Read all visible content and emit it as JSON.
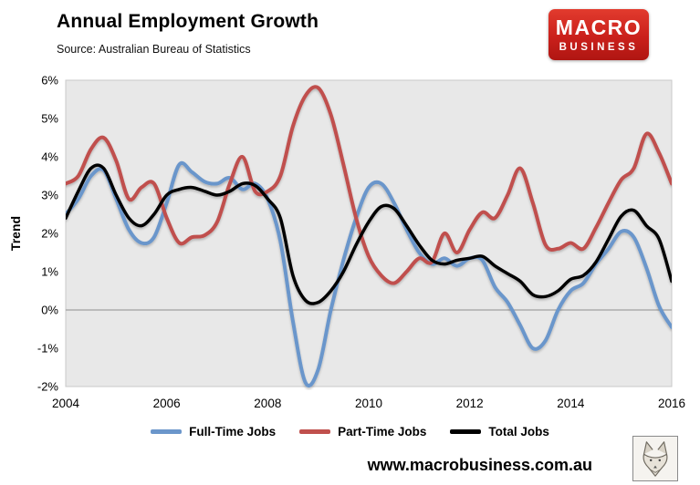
{
  "header": {
    "title": "Annual Employment Growth",
    "subtitle": "Source: Australian Bureau of Statistics",
    "logo": {
      "line1": "MACRO",
      "line2": "BUSINESS",
      "bg_color": "#C8201D",
      "text_color": "#FFFFFF"
    }
  },
  "chart_data": {
    "type": "line",
    "title": "Annual Employment Growth",
    "ylabel": "Trend",
    "xlabel": "",
    "xlim": [
      2004,
      2016
    ],
    "ylim": [
      -2,
      6
    ],
    "x_ticks": [
      2004,
      2006,
      2008,
      2010,
      2012,
      2014,
      2016
    ],
    "y_ticks": [
      6,
      5,
      4,
      3,
      2,
      1,
      0,
      -1,
      -2
    ],
    "y_tick_suffix": "%",
    "grid": "zero-line-only",
    "plot_bg": "#E8E8E8",
    "plot_border": "#C9C9C9",
    "zero_line_color": "#A0A0A0",
    "legend_position": "bottom",
    "x": [
      2004,
      2004.25,
      2004.5,
      2004.75,
      2005,
      2005.25,
      2005.5,
      2005.75,
      2006,
      2006.25,
      2006.5,
      2006.75,
      2007,
      2007.25,
      2007.5,
      2007.75,
      2008,
      2008.25,
      2008.5,
      2008.75,
      2009,
      2009.25,
      2009.5,
      2009.75,
      2010,
      2010.25,
      2010.5,
      2010.75,
      2011,
      2011.25,
      2011.5,
      2011.75,
      2012,
      2012.25,
      2012.5,
      2012.75,
      2013,
      2013.25,
      2013.5,
      2013.75,
      2014,
      2014.25,
      2014.5,
      2014.75,
      2015,
      2015.25,
      2015.5,
      2015.75,
      2016
    ],
    "series": [
      {
        "name": "Full-Time Jobs",
        "color": "#6B96CB",
        "values": [
          2.5,
          2.9,
          3.5,
          3.65,
          2.9,
          2.1,
          1.75,
          1.9,
          2.8,
          3.8,
          3.6,
          3.35,
          3.3,
          3.45,
          3.15,
          3.3,
          2.9,
          1.8,
          -0.3,
          -1.9,
          -1.55,
          0.0,
          1.3,
          2.4,
          3.2,
          3.3,
          2.8,
          2.1,
          1.5,
          1.2,
          1.35,
          1.15,
          1.35,
          1.3,
          0.6,
          0.2,
          -0.4,
          -1.0,
          -0.8,
          0.0,
          0.5,
          0.7,
          1.2,
          1.6,
          2.05,
          1.9,
          1.1,
          0.1,
          -0.45
        ]
      },
      {
        "name": "Part-Time Jobs",
        "color": "#C0504D",
        "values": [
          3.3,
          3.5,
          4.2,
          4.5,
          3.9,
          2.9,
          3.2,
          3.3,
          2.4,
          1.75,
          1.9,
          1.95,
          2.3,
          3.3,
          4.0,
          3.1,
          3.1,
          3.5,
          4.8,
          5.6,
          5.8,
          5.1,
          3.8,
          2.4,
          1.4,
          0.9,
          0.7,
          1.0,
          1.35,
          1.25,
          2.0,
          1.5,
          2.1,
          2.55,
          2.4,
          3.0,
          3.7,
          2.8,
          1.7,
          1.6,
          1.75,
          1.6,
          2.15,
          2.8,
          3.4,
          3.7,
          4.6,
          4.1,
          3.3
        ]
      },
      {
        "name": "Total Jobs",
        "color": "#000000",
        "values": [
          2.4,
          3.1,
          3.7,
          3.7,
          3.0,
          2.4,
          2.2,
          2.5,
          3.0,
          3.15,
          3.2,
          3.1,
          3.0,
          3.1,
          3.3,
          3.25,
          2.9,
          2.4,
          0.9,
          0.25,
          0.2,
          0.5,
          1.0,
          1.7,
          2.3,
          2.7,
          2.65,
          2.2,
          1.7,
          1.3,
          1.2,
          1.3,
          1.35,
          1.4,
          1.15,
          0.95,
          0.75,
          0.4,
          0.35,
          0.5,
          0.8,
          0.9,
          1.25,
          1.85,
          2.45,
          2.6,
          2.2,
          1.85,
          0.75
        ]
      }
    ]
  },
  "footer": {
    "url": "www.macrobusiness.com.au",
    "wolf_icon": "wolf-etching"
  }
}
